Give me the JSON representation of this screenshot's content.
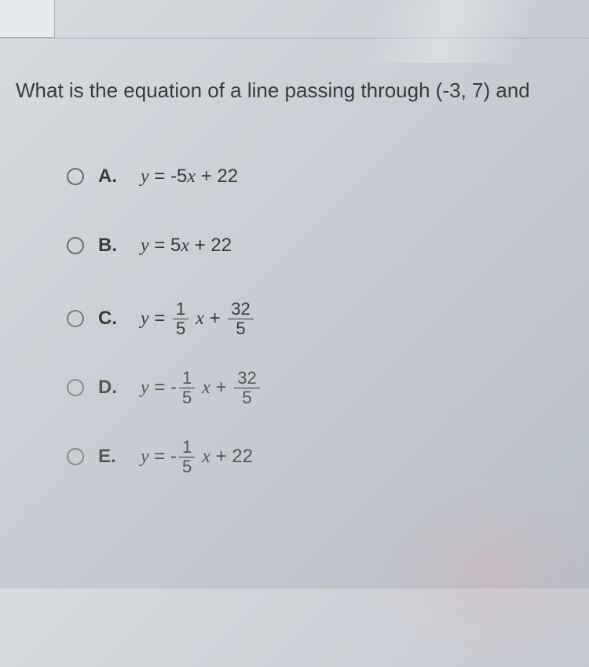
{
  "question": {
    "text": "What is the equation of a line passing through (-3, 7) and",
    "fontsize": 26,
    "color": "#3a3a3a"
  },
  "options": [
    {
      "label": "A.",
      "equation_type": "simple",
      "y_eq": "y",
      "coeff": "-5",
      "var": "x",
      "op": "+",
      "const": "22"
    },
    {
      "label": "B.",
      "equation_type": "simple",
      "y_eq": "y",
      "coeff": "5",
      "var": "x",
      "op": "+",
      "const": "22"
    },
    {
      "label": "C.",
      "equation_type": "frac_frac",
      "y_eq": "y",
      "coeff_num": "1",
      "coeff_den": "5",
      "var": "x",
      "op": "+",
      "const_num": "32",
      "const_den": "5",
      "neg_coeff": ""
    },
    {
      "label": "D.",
      "equation_type": "frac_frac",
      "y_eq": "y",
      "coeff_num": "1",
      "coeff_den": "5",
      "var": "x",
      "op": "+",
      "const_num": "32",
      "const_den": "5",
      "neg_coeff": "-"
    },
    {
      "label": "E.",
      "equation_type": "frac_simple",
      "y_eq": "y",
      "coeff_num": "1",
      "coeff_den": "5",
      "var": "x",
      "op": "+",
      "const": "22",
      "neg_coeff": "-"
    }
  ],
  "styling": {
    "background_gradient": [
      "#d8dce0",
      "#c8ccd2",
      "#b8bec6"
    ],
    "radio_border": "#6a6a6a",
    "text_color": "#3a3a3a",
    "faded_text_color": "#565656",
    "equation_font": "Times New Roman",
    "label_fontsize": 24,
    "equation_fontsize": 24,
    "frac_fontsize": 22
  }
}
